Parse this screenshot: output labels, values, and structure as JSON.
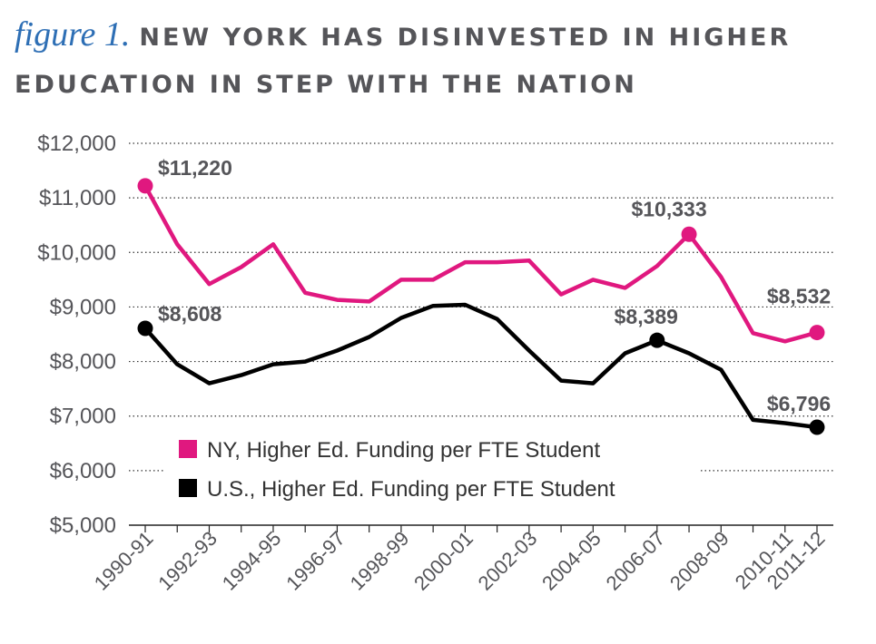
{
  "header": {
    "figure_label": "figure 1.",
    "title_line1": "NEW YORK HAS DISINVESTED IN HIGHER",
    "title_line2": "EDUCATION IN STEP WITH THE NATION"
  },
  "chart_data": {
    "type": "line",
    "title": "NEW YORK HAS DISINVESTED IN HIGHER EDUCATION IN STEP WITH THE NATION",
    "x": [
      "1990-91",
      "1991-92",
      "1992-93",
      "1993-94",
      "1994-95",
      "1995-96",
      "1996-97",
      "1997-98",
      "1998-99",
      "1999-00",
      "2000-01",
      "2001-02",
      "2002-03",
      "2003-04",
      "2004-05",
      "2005-06",
      "2006-07",
      "2007-08",
      "2008-09",
      "2009-10",
      "2010-11",
      "2011-12"
    ],
    "x_tick_labels": [
      "1990-91",
      "1992-93",
      "1994-95",
      "1996-97",
      "1998-99",
      "2000-01",
      "2002-03",
      "2004-05",
      "2006-07",
      "2008-09",
      "2010-11",
      "2011-12"
    ],
    "x_tick_indices": [
      0,
      2,
      4,
      6,
      8,
      10,
      12,
      14,
      16,
      18,
      20,
      21
    ],
    "y_tick_labels": [
      "$5,000",
      "$6,000",
      "$7,000",
      "$8,000",
      "$9,000",
      "$10,000",
      "$11,000",
      "$12,000"
    ],
    "y_ticks": [
      5000,
      6000,
      7000,
      8000,
      9000,
      10000,
      11000,
      12000
    ],
    "ylim": [
      5000,
      12000
    ],
    "grid": "horizontal dotted",
    "legend_position": "bottom-center",
    "series": [
      {
        "name": "NY, Higher Ed. Funding per FTE Student",
        "color": "#e0187f",
        "values": [
          11220,
          10150,
          9420,
          9730,
          10150,
          9260,
          9130,
          9100,
          9500,
          9500,
          9820,
          9820,
          9850,
          9230,
          9500,
          9350,
          9750,
          10333,
          9550,
          8520,
          8370,
          8532
        ],
        "markers": [
          {
            "index": 0,
            "label": "$11,220"
          },
          {
            "index": 17,
            "label": "$10,333"
          },
          {
            "index": 21,
            "label": "$8,532"
          }
        ]
      },
      {
        "name": "U.S., Higher Ed. Funding per FTE Student",
        "color": "#000000",
        "values": [
          8608,
          7950,
          7600,
          7750,
          7950,
          8000,
          8200,
          8450,
          8800,
          9020,
          9040,
          8780,
          8200,
          7650,
          7600,
          8150,
          8389,
          8150,
          7850,
          6930,
          6870,
          6796
        ],
        "markers": [
          {
            "index": 0,
            "label": "$8,608"
          },
          {
            "index": 16,
            "label": "$8,389"
          },
          {
            "index": 21,
            "label": "$6,796"
          }
        ]
      }
    ]
  }
}
